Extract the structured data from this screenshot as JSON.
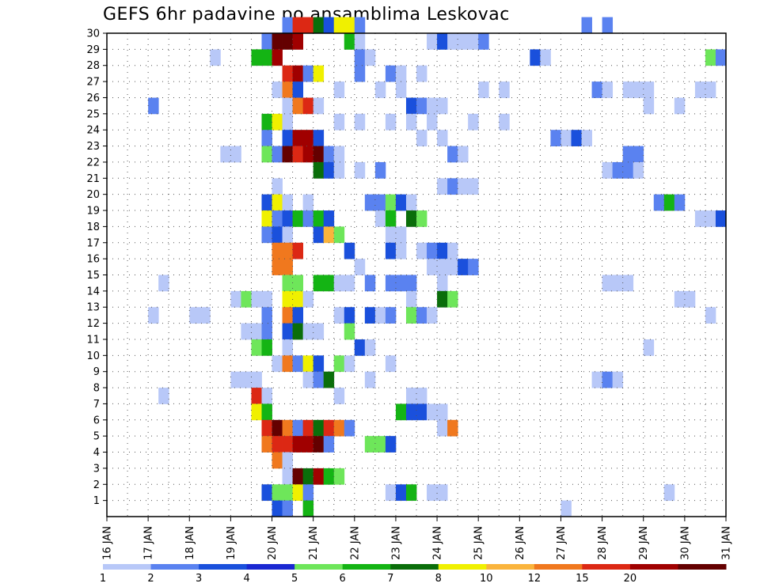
{
  "chart_data": {
    "type": "heatmap",
    "title": "GEFS 6hr padavine po ansamblima Leskovac",
    "xlabel": "",
    "ylabel": "",
    "x_start_day": 16,
    "x_end_day": 31,
    "x_ticks": [
      {
        "day": 16,
        "label": "16 JAN"
      },
      {
        "day": 17,
        "label": "17 JAN"
      },
      {
        "day": 18,
        "label": "18 JAN"
      },
      {
        "day": 19,
        "label": "19 JAN"
      },
      {
        "day": 20,
        "label": "20 JAN"
      },
      {
        "day": 21,
        "label": "21 JAN"
      },
      {
        "day": 22,
        "label": "22 JAN"
      },
      {
        "day": 23,
        "label": "23 JAN"
      },
      {
        "day": 24,
        "label": "24 JAN"
      },
      {
        "day": 25,
        "label": "25 JAN"
      },
      {
        "day": 26,
        "label": "26 JAN"
      },
      {
        "day": 27,
        "label": "27 JAN"
      },
      {
        "day": 28,
        "label": "28 JAN"
      },
      {
        "day": 29,
        "label": "29 JAN"
      },
      {
        "day": 30,
        "label": "30 JAN"
      },
      {
        "day": 31,
        "label": "31 JAN"
      }
    ],
    "y_ticks": [
      1,
      2,
      3,
      4,
      5,
      6,
      7,
      8,
      9,
      10,
      11,
      12,
      13,
      14,
      15,
      16,
      17,
      18,
      19,
      20,
      21,
      22,
      23,
      24,
      25,
      26,
      27,
      28,
      29,
      30
    ],
    "ylim": [
      0,
      30
    ],
    "grid": true,
    "colorbar": {
      "labels": [
        "1",
        "2",
        "3",
        "4",
        "5",
        "6",
        "7",
        "8",
        "10",
        "12",
        "15",
        "20"
      ],
      "colors": [
        "#b8c8f8",
        "#5a82f0",
        "#1a50dc",
        "#1a28d2",
        "#6ee65a",
        "#14b414",
        "#0a6e0a",
        "#f0f000",
        "#fab43c",
        "#f0781e",
        "#dc2814",
        "#a00000",
        "#640000"
      ]
    },
    "levels": [
      "1",
      "2",
      "3",
      "4",
      "5",
      "6",
      "7",
      "8",
      "10",
      "12",
      "15",
      "20"
    ],
    "cells": [
      [
        30,
        20.25,
        1
      ],
      [
        30,
        20.5,
        10
      ],
      [
        30,
        20.75,
        10
      ],
      [
        30,
        21.0,
        6
      ],
      [
        30,
        21.25,
        2
      ],
      [
        30,
        21.5,
        7
      ],
      [
        30,
        21.75,
        7
      ],
      [
        30,
        22.0,
        1
      ],
      [
        30,
        27.5,
        1
      ],
      [
        30,
        28.0,
        1
      ],
      [
        29,
        19.75,
        1
      ],
      [
        29,
        20.0,
        12
      ],
      [
        29,
        20.25,
        12
      ],
      [
        29,
        20.5,
        11
      ],
      [
        29,
        21.75,
        5
      ],
      [
        29,
        22.0,
        0
      ],
      [
        29,
        23.75,
        0
      ],
      [
        29,
        24.0,
        2
      ],
      [
        29,
        24.25,
        0
      ],
      [
        29,
        24.5,
        0
      ],
      [
        29,
        24.75,
        0
      ],
      [
        29,
        25.0,
        1
      ],
      [
        28,
        18.5,
        0
      ],
      [
        28,
        19.5,
        5
      ],
      [
        28,
        19.75,
        5
      ],
      [
        28,
        20.0,
        11
      ],
      [
        28,
        22.0,
        1
      ],
      [
        28,
        22.25,
        0
      ],
      [
        28,
        26.25,
        2
      ],
      [
        28,
        26.5,
        0
      ],
      [
        28,
        30.5,
        4
      ],
      [
        28,
        30.75,
        1
      ],
      [
        27,
        20.25,
        10
      ],
      [
        27,
        20.5,
        11
      ],
      [
        27,
        20.75,
        1
      ],
      [
        27,
        21.0,
        7
      ],
      [
        27,
        22.0,
        1
      ],
      [
        27,
        22.75,
        1
      ],
      [
        27,
        23.0,
        0
      ],
      [
        27,
        23.5,
        0
      ],
      [
        26,
        20.0,
        0
      ],
      [
        26,
        20.25,
        9
      ],
      [
        26,
        20.5,
        2
      ],
      [
        26,
        21.5,
        0
      ],
      [
        26,
        22.5,
        0
      ],
      [
        26,
        23.0,
        0
      ],
      [
        26,
        25.0,
        0
      ],
      [
        26,
        25.5,
        0
      ],
      [
        26,
        27.75,
        1
      ],
      [
        26,
        28.0,
        0
      ],
      [
        26,
        28.5,
        0
      ],
      [
        26,
        28.75,
        0
      ],
      [
        26,
        29.0,
        0
      ],
      [
        26,
        30.25,
        0
      ],
      [
        26,
        30.5,
        0
      ],
      [
        25,
        17.0,
        1
      ],
      [
        25,
        20.25,
        0
      ],
      [
        25,
        20.5,
        9
      ],
      [
        25,
        20.75,
        10
      ],
      [
        25,
        21.0,
        0
      ],
      [
        25,
        23.25,
        2
      ],
      [
        25,
        23.5,
        1
      ],
      [
        25,
        23.75,
        0
      ],
      [
        25,
        24.0,
        0
      ],
      [
        25,
        29.0,
        0
      ],
      [
        25,
        29.75,
        0
      ],
      [
        24,
        19.75,
        5
      ],
      [
        24,
        20.0,
        7
      ],
      [
        24,
        20.25,
        0
      ],
      [
        24,
        21.5,
        0
      ],
      [
        24,
        22.0,
        0
      ],
      [
        24,
        22.75,
        0
      ],
      [
        24,
        23.25,
        0
      ],
      [
        24,
        23.75,
        0
      ],
      [
        24,
        24.75,
        0
      ],
      [
        24,
        25.5,
        0
      ],
      [
        23,
        19.75,
        1
      ],
      [
        23,
        20.25,
        2
      ],
      [
        23,
        20.5,
        11
      ],
      [
        23,
        20.75,
        11
      ],
      [
        23,
        21.0,
        2
      ],
      [
        23,
        23.5,
        0
      ],
      [
        23,
        24.0,
        0
      ],
      [
        23,
        26.75,
        1
      ],
      [
        23,
        27.0,
        0
      ],
      [
        23,
        27.25,
        2
      ],
      [
        23,
        27.5,
        0
      ],
      [
        22,
        18.75,
        0
      ],
      [
        22,
        19.0,
        0
      ],
      [
        22,
        19.75,
        4
      ],
      [
        22,
        20.0,
        1
      ],
      [
        22,
        20.25,
        12
      ],
      [
        22,
        20.5,
        10
      ],
      [
        22,
        20.75,
        11
      ],
      [
        22,
        21.0,
        12
      ],
      [
        22,
        21.25,
        1
      ],
      [
        22,
        21.5,
        0
      ],
      [
        22,
        24.25,
        1
      ],
      [
        22,
        24.5,
        0
      ],
      [
        22,
        28.5,
        1
      ],
      [
        22,
        28.75,
        1
      ],
      [
        21,
        21.0,
        6
      ],
      [
        21,
        21.25,
        2
      ],
      [
        21,
        21.5,
        0
      ],
      [
        21,
        22.0,
        0
      ],
      [
        21,
        22.5,
        1
      ],
      [
        21,
        28.0,
        0
      ],
      [
        21,
        28.25,
        1
      ],
      [
        21,
        28.5,
        1
      ],
      [
        21,
        28.75,
        0
      ],
      [
        20,
        20.0,
        0
      ],
      [
        20,
        24.0,
        0
      ],
      [
        20,
        24.25,
        1
      ],
      [
        20,
        24.5,
        0
      ],
      [
        20,
        24.75,
        0
      ],
      [
        19,
        19.75,
        2
      ],
      [
        19,
        20.0,
        7
      ],
      [
        19,
        20.25,
        0
      ],
      [
        19,
        20.75,
        0
      ],
      [
        19,
        22.25,
        1
      ],
      [
        19,
        22.5,
        1
      ],
      [
        19,
        22.75,
        4
      ],
      [
        19,
        23.0,
        2
      ],
      [
        19,
        23.25,
        0
      ],
      [
        19,
        29.25,
        1
      ],
      [
        19,
        29.5,
        5
      ],
      [
        19,
        29.75,
        1
      ],
      [
        18,
        19.75,
        7
      ],
      [
        18,
        20.0,
        1
      ],
      [
        18,
        20.25,
        2
      ],
      [
        18,
        20.5,
        5
      ],
      [
        18,
        20.75,
        1
      ],
      [
        18,
        21.0,
        5
      ],
      [
        18,
        21.25,
        2
      ],
      [
        18,
        22.5,
        0
      ],
      [
        18,
        22.75,
        5
      ],
      [
        18,
        23.25,
        6
      ],
      [
        18,
        23.5,
        4
      ],
      [
        18,
        30.25,
        0
      ],
      [
        18,
        30.5,
        0
      ],
      [
        18,
        30.75,
        2
      ],
      [
        17,
        19.75,
        1
      ],
      [
        17,
        20.0,
        2
      ],
      [
        17,
        20.25,
        0
      ],
      [
        17,
        21.0,
        2
      ],
      [
        17,
        21.25,
        8
      ],
      [
        17,
        21.5,
        4
      ],
      [
        17,
        22.75,
        0
      ],
      [
        17,
        23.0,
        0
      ],
      [
        16,
        20.0,
        9
      ],
      [
        16,
        20.25,
        9
      ],
      [
        16,
        20.5,
        10
      ],
      [
        16,
        21.75,
        2
      ],
      [
        16,
        22.75,
        2
      ],
      [
        16,
        23.0,
        0
      ],
      [
        16,
        23.5,
        0
      ],
      [
        16,
        23.75,
        1
      ],
      [
        16,
        24.0,
        2
      ],
      [
        16,
        24.25,
        0
      ],
      [
        15,
        20.0,
        9
      ],
      [
        15,
        20.25,
        9
      ],
      [
        15,
        22.0,
        0
      ],
      [
        15,
        23.75,
        0
      ],
      [
        15,
        24.0,
        0
      ],
      [
        15,
        24.25,
        0
      ],
      [
        15,
        24.5,
        2
      ],
      [
        15,
        24.75,
        1
      ],
      [
        14,
        17.25,
        0
      ],
      [
        14,
        20.25,
        4
      ],
      [
        14,
        20.5,
        4
      ],
      [
        14,
        21.0,
        5
      ],
      [
        14,
        21.25,
        5
      ],
      [
        14,
        21.5,
        0
      ],
      [
        14,
        21.75,
        0
      ],
      [
        14,
        22.25,
        1
      ],
      [
        14,
        22.75,
        1
      ],
      [
        14,
        23.0,
        1
      ],
      [
        14,
        23.25,
        1
      ],
      [
        14,
        24.0,
        0
      ],
      [
        14,
        28.0,
        0
      ],
      [
        14,
        28.25,
        0
      ],
      [
        14,
        28.5,
        0
      ],
      [
        13,
        19.0,
        0
      ],
      [
        13,
        19.25,
        4
      ],
      [
        13,
        19.5,
        0
      ],
      [
        13,
        19.75,
        0
      ],
      [
        13,
        20.25,
        7
      ],
      [
        13,
        20.5,
        7
      ],
      [
        13,
        20.75,
        0
      ],
      [
        13,
        23.25,
        0
      ],
      [
        13,
        24.0,
        6
      ],
      [
        13,
        24.25,
        4
      ],
      [
        13,
        29.75,
        0
      ],
      [
        13,
        30.0,
        0
      ],
      [
        12,
        17.0,
        0
      ],
      [
        12,
        18.0,
        0
      ],
      [
        12,
        18.25,
        0
      ],
      [
        12,
        19.75,
        1
      ],
      [
        12,
        20.25,
        9
      ],
      [
        12,
        20.5,
        2
      ],
      [
        12,
        21.5,
        0
      ],
      [
        12,
        21.75,
        2
      ],
      [
        12,
        22.25,
        2
      ],
      [
        12,
        22.5,
        0
      ],
      [
        12,
        22.75,
        1
      ],
      [
        12,
        23.25,
        4
      ],
      [
        12,
        23.5,
        1
      ],
      [
        12,
        23.75,
        0
      ],
      [
        12,
        30.5,
        0
      ],
      [
        11,
        19.25,
        0
      ],
      [
        11,
        19.5,
        0
      ],
      [
        11,
        19.75,
        1
      ],
      [
        11,
        20.25,
        2
      ],
      [
        11,
        20.5,
        6
      ],
      [
        11,
        20.75,
        0
      ],
      [
        11,
        21.0,
        0
      ],
      [
        11,
        21.75,
        4
      ],
      [
        10,
        19.5,
        4
      ],
      [
        10,
        19.75,
        5
      ],
      [
        10,
        20.25,
        0
      ],
      [
        10,
        22.0,
        2
      ],
      [
        10,
        22.25,
        0
      ],
      [
        10,
        29.0,
        0
      ],
      [
        9,
        20.0,
        0
      ],
      [
        9,
        20.25,
        9
      ],
      [
        9,
        20.5,
        1
      ],
      [
        9,
        20.75,
        7
      ],
      [
        9,
        21.0,
        2
      ],
      [
        9,
        21.5,
        4
      ],
      [
        9,
        21.75,
        0
      ],
      [
        9,
        22.75,
        0
      ],
      [
        8,
        19.0,
        0
      ],
      [
        8,
        19.25,
        0
      ],
      [
        8,
        19.5,
        0
      ],
      [
        8,
        20.75,
        0
      ],
      [
        8,
        21.0,
        1
      ],
      [
        8,
        21.25,
        6
      ],
      [
        8,
        22.25,
        0
      ],
      [
        8,
        27.75,
        0
      ],
      [
        8,
        28.0,
        1
      ],
      [
        8,
        28.25,
        0
      ],
      [
        7,
        17.25,
        0
      ],
      [
        7,
        19.5,
        10
      ],
      [
        7,
        19.75,
        0
      ],
      [
        7,
        21.5,
        0
      ],
      [
        7,
        23.25,
        0
      ],
      [
        7,
        23.5,
        0
      ],
      [
        6,
        19.5,
        7
      ],
      [
        6,
        19.75,
        5
      ],
      [
        6,
        23.0,
        5
      ],
      [
        6,
        23.25,
        2
      ],
      [
        6,
        23.5,
        2
      ],
      [
        6,
        23.75,
        0
      ],
      [
        6,
        24.0,
        0
      ],
      [
        5,
        19.75,
        10
      ],
      [
        5,
        20.0,
        12
      ],
      [
        5,
        20.25,
        9
      ],
      [
        5,
        20.5,
        1
      ],
      [
        5,
        20.75,
        10
      ],
      [
        5,
        21.0,
        6
      ],
      [
        5,
        21.25,
        10
      ],
      [
        5,
        21.5,
        9
      ],
      [
        5,
        21.75,
        1
      ],
      [
        5,
        24.0,
        0
      ],
      [
        5,
        24.25,
        9
      ],
      [
        4,
        19.75,
        9
      ],
      [
        4,
        20.0,
        10
      ],
      [
        4,
        20.25,
        10
      ],
      [
        4,
        20.5,
        11
      ],
      [
        4,
        20.75,
        11
      ],
      [
        4,
        21.0,
        12
      ],
      [
        4,
        21.25,
        1
      ],
      [
        4,
        22.25,
        4
      ],
      [
        4,
        22.5,
        4
      ],
      [
        4,
        22.75,
        2
      ],
      [
        3,
        20.0,
        9
      ],
      [
        3,
        20.25,
        0
      ],
      [
        2,
        20.25,
        0
      ],
      [
        2,
        20.5,
        12
      ],
      [
        2,
        20.75,
        6
      ],
      [
        2,
        21.0,
        11
      ],
      [
        2,
        21.25,
        5
      ],
      [
        2,
        21.5,
        4
      ],
      [
        1,
        19.75,
        2
      ],
      [
        1,
        20.0,
        4
      ],
      [
        1,
        20.25,
        4
      ],
      [
        1,
        20.5,
        7
      ],
      [
        1,
        20.75,
        1
      ],
      [
        1,
        22.75,
        0
      ],
      [
        1,
        23.0,
        2
      ],
      [
        1,
        23.25,
        5
      ],
      [
        1,
        23.75,
        0
      ],
      [
        1,
        24.0,
        0
      ],
      [
        1,
        29.5,
        0
      ],
      [
        0,
        20.0,
        2
      ],
      [
        0,
        20.25,
        1
      ],
      [
        0,
        20.75,
        5
      ],
      [
        0,
        27.0,
        0
      ]
    ]
  }
}
